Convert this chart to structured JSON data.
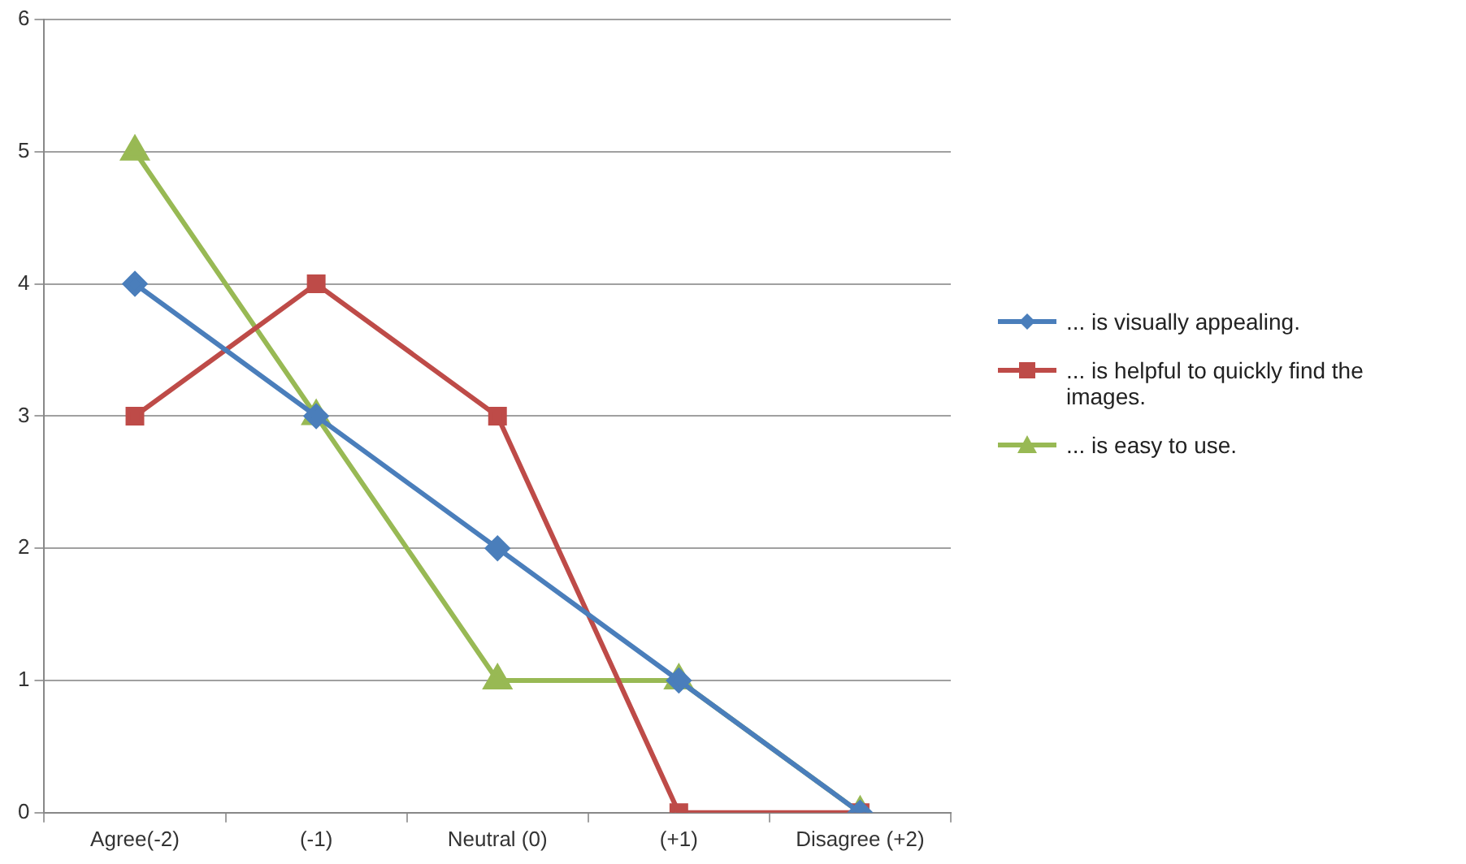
{
  "chart_data": {
    "type": "line",
    "categories": [
      "Agree(-2)",
      "(-1)",
      "Neutral (0)",
      "(+1)",
      "Disagree (+2)"
    ],
    "series": [
      {
        "name": "... is visually appealing.",
        "color": "#4a7ebb",
        "marker": "diamond",
        "values": [
          4,
          3,
          2,
          1,
          0
        ]
      },
      {
        "name": "... is helpful to quickly find the images.",
        "color": "#be4b48",
        "marker": "square",
        "values": [
          3,
          4,
          3,
          0,
          0
        ]
      },
      {
        "name": "... is easy to use.",
        "color": "#98b954",
        "marker": "triangle",
        "values": [
          5,
          3,
          1,
          1,
          0
        ]
      }
    ],
    "ylim": [
      0,
      6
    ],
    "yticks": [
      0,
      1,
      2,
      3,
      4,
      5,
      6
    ],
    "grid": "y",
    "legend": "right",
    "line_style": "solid"
  }
}
